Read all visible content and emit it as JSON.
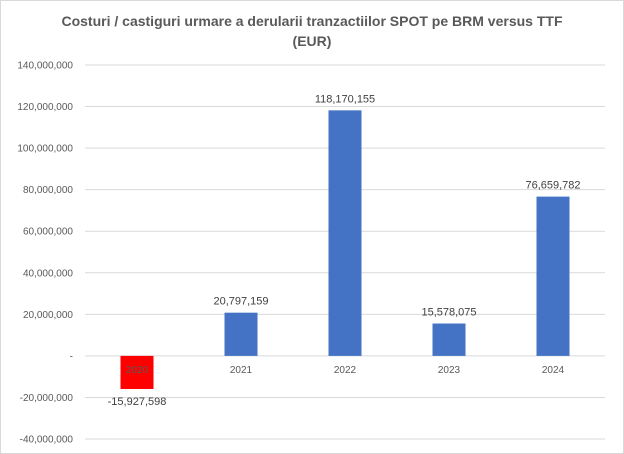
{
  "chart_data": {
    "type": "bar",
    "title_line1": "Costuri / castiguri urmare a derularii tranzactiilor SPOT pe BRM versus TTF",
    "title_line2": "(EUR)",
    "xlabel": "",
    "ylabel": "",
    "categories": [
      "2020",
      "2021",
      "2022",
      "2023",
      "2024"
    ],
    "values": [
      -15927598,
      20797159,
      118170155,
      15578075,
      76659782
    ],
    "data_labels": [
      "-15,927,598",
      "20,797,159",
      "118,170,155",
      "15,578,075",
      "76,659,782"
    ],
    "ylim": [
      -40000000,
      140000000
    ],
    "y_ticks": [
      140000000,
      120000000,
      100000000,
      80000000,
      60000000,
      40000000,
      20000000,
      0,
      -20000000,
      -40000000
    ],
    "y_tick_labels": [
      "140,000,000",
      "120,000,000",
      "100,000,000",
      "80,000,000",
      "60,000,000",
      "40,000,000",
      "20,000,000",
      "-",
      "-20,000,000",
      "-40,000,000"
    ],
    "grid": true,
    "legend": "none",
    "colors": {
      "positive": "#4472c4",
      "negative": "#ff0000",
      "grid": "#d9d9d9",
      "text": "#595959"
    }
  }
}
